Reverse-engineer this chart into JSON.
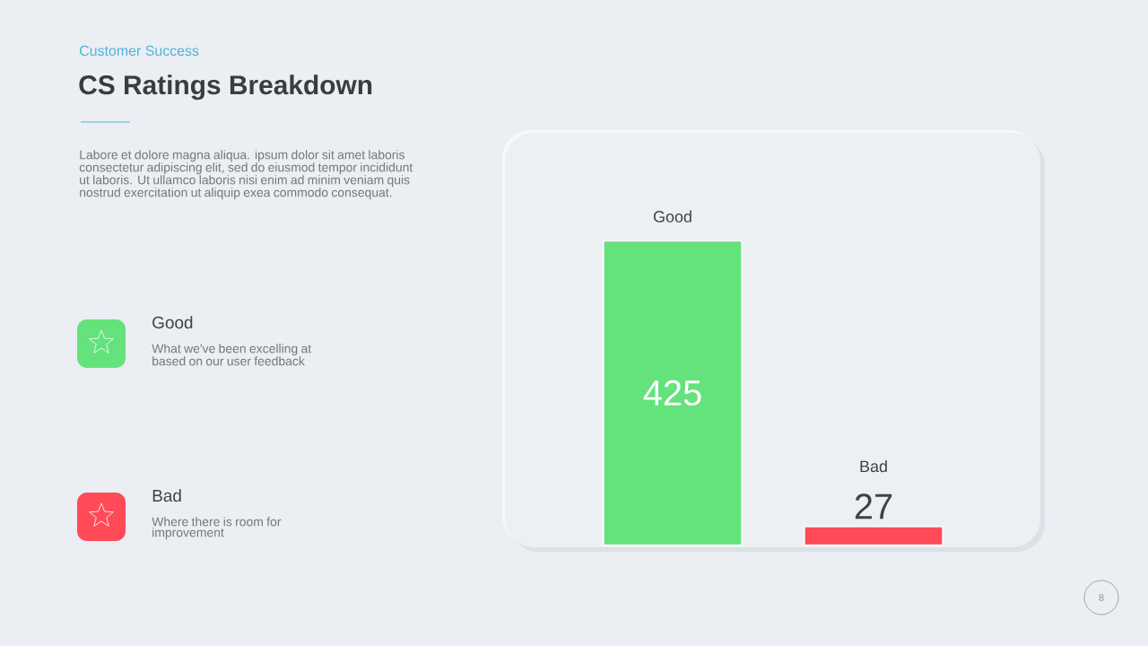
{
  "chart_data": {
    "type": "bar",
    "subtitle": "Customer Success",
    "title": "CS Ratings Breakdown",
    "categories": [
      "Good",
      "Bad"
    ],
    "values": [
      425,
      27
    ],
    "colors": [
      "#64e27c",
      "#ff4a58"
    ],
    "data_labels": true,
    "annotations": [
      "Labore et dolore magna aliqua. ipsum dolor sit amet laboris consectetur adipiscing elit, sed do eiusmod tempor incididunt ut laboris. Ut ullamco laboris nisi enim ad minim veniam quis nostrud exercitation ut aliquip exea commodo consequat.",
      "What we've been excelling at based on our user feedback",
      "Where there is room for improvement",
      "8"
    ]
  }
}
